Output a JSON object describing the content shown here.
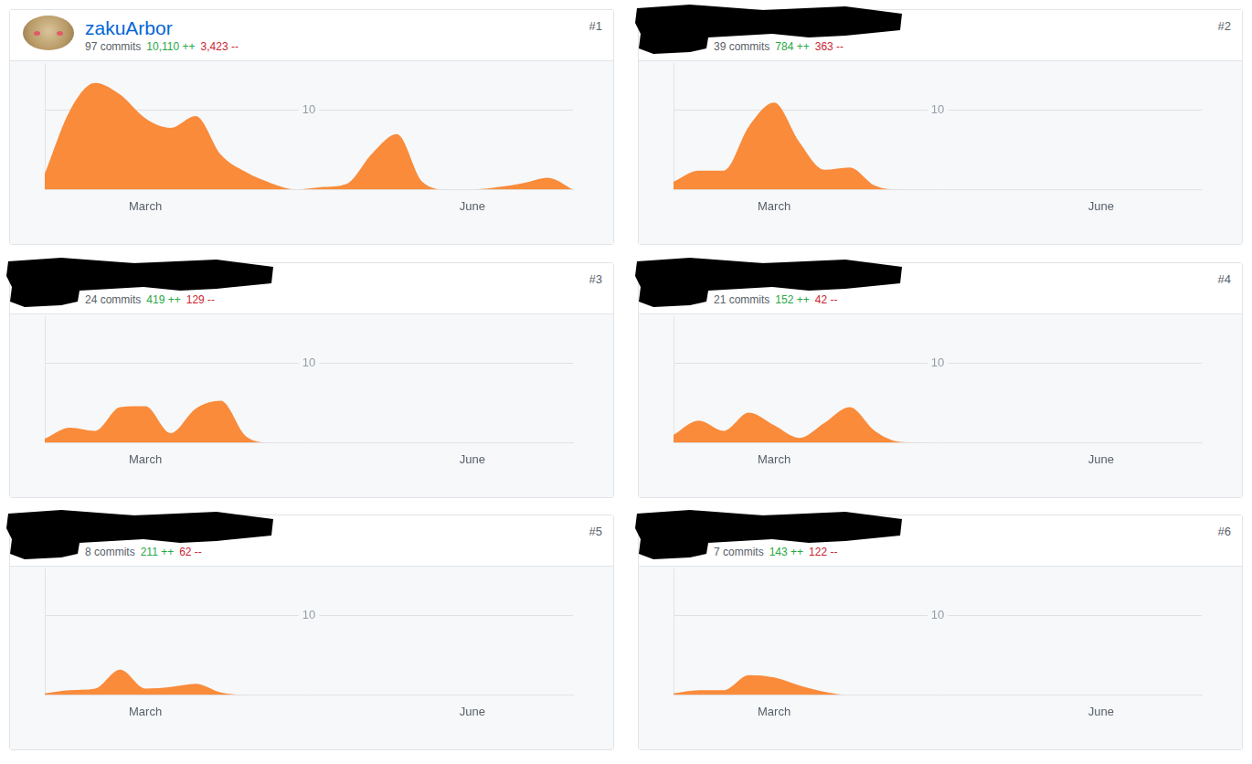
{
  "contributors": [
    {
      "rank": "#1",
      "name": "zakuArbor",
      "commits": "97 commits",
      "additions": "10,110 ++",
      "deletions": "3,423 --"
    },
    {
      "rank": "#2",
      "commits": "39 commits",
      "additions": "784 ++",
      "deletions": "363 --"
    },
    {
      "rank": "#3",
      "commits": "24 commits",
      "additions": "419 ++",
      "deletions": "129 --"
    },
    {
      "rank": "#4",
      "commits": "21 commits",
      "additions": "152 ++",
      "deletions": "42 --"
    },
    {
      "rank": "#5",
      "commits": "8 commits",
      "additions": "211 ++",
      "deletions": "62 --"
    },
    {
      "rank": "#6",
      "commits": "7 commits",
      "additions": "143 ++",
      "deletions": "122 --"
    }
  ],
  "chart_data": [
    {
      "type": "area",
      "color": "#f98b3a",
      "grid": true,
      "ylim": [
        0,
        16
      ],
      "yticks": [
        10
      ],
      "categories": [
        null,
        null,
        null,
        null,
        "March",
        null,
        null,
        null,
        null,
        null,
        null,
        null,
        null,
        null,
        null,
        null,
        null,
        "June",
        null,
        null,
        null,
        null
      ],
      "values": [
        2,
        10,
        13.5,
        12,
        9,
        7.8,
        9.3,
        4.4,
        2.2,
        0.8,
        0,
        0.3,
        0.7,
        4.5,
        7,
        1,
        0,
        0,
        0.3,
        0.8,
        1.5,
        0
      ]
    },
    {
      "type": "area",
      "color": "#f98b3a",
      "grid": true,
      "ylim": [
        0,
        16
      ],
      "yticks": [
        10
      ],
      "categories": [
        null,
        null,
        null,
        null,
        "March",
        null,
        null,
        null,
        null,
        null,
        null,
        null,
        null,
        null,
        null,
        null,
        null,
        "June",
        null,
        null,
        null,
        null
      ],
      "values": [
        1,
        2.4,
        2.4,
        8,
        11,
        6,
        2.5,
        2.8,
        0.5,
        0,
        0,
        0,
        0,
        0,
        0,
        0,
        0,
        0,
        0,
        0,
        0,
        0
      ]
    },
    {
      "type": "area",
      "color": "#f98b3a",
      "grid": true,
      "ylim": [
        0,
        16
      ],
      "yticks": [
        10
      ],
      "categories": [
        null,
        null,
        null,
        null,
        "March",
        null,
        null,
        null,
        null,
        null,
        null,
        null,
        null,
        null,
        null,
        null,
        null,
        "June",
        null,
        null,
        null,
        null
      ],
      "values": [
        0.5,
        1.9,
        1.5,
        4.5,
        4.6,
        1.2,
        4.3,
        5.3,
        0.8,
        0,
        0,
        0,
        0,
        0,
        0,
        0,
        0,
        0,
        0,
        0,
        0,
        0
      ]
    },
    {
      "type": "area",
      "color": "#f98b3a",
      "grid": true,
      "ylim": [
        0,
        16
      ],
      "yticks": [
        10
      ],
      "categories": [
        null,
        null,
        null,
        null,
        "March",
        null,
        null,
        null,
        null,
        null,
        null,
        null,
        null,
        null,
        null,
        null,
        null,
        "June",
        null,
        null,
        null,
        null
      ],
      "values": [
        1,
        2.8,
        1.5,
        3.8,
        2.2,
        0.6,
        2.5,
        4.5,
        1.5,
        0.1,
        0,
        0,
        0,
        0,
        0,
        0,
        0,
        0,
        0,
        0,
        0,
        0
      ]
    },
    {
      "type": "area",
      "color": "#f98b3a",
      "grid": true,
      "ylim": [
        0,
        16
      ],
      "yticks": [
        10
      ],
      "categories": [
        null,
        null,
        null,
        null,
        "March",
        null,
        null,
        null,
        null,
        null,
        null,
        null,
        null,
        null,
        null,
        null,
        null,
        "June",
        null,
        null,
        null,
        null
      ],
      "values": [
        0.2,
        0.6,
        0.8,
        3.2,
        0.8,
        1,
        1.4,
        0.3,
        0,
        0,
        0,
        0,
        0,
        0,
        0,
        0,
        0,
        0,
        0,
        0,
        0,
        0
      ]
    },
    {
      "type": "area",
      "color": "#f98b3a",
      "grid": true,
      "ylim": [
        0,
        16
      ],
      "yticks": [
        10
      ],
      "categories": [
        null,
        null,
        null,
        null,
        "March",
        null,
        null,
        null,
        null,
        null,
        null,
        null,
        null,
        null,
        null,
        null,
        null,
        "June",
        null,
        null,
        null,
        null
      ],
      "values": [
        0.2,
        0.6,
        0.6,
        2.5,
        2.2,
        1.2,
        0.4,
        0,
        0,
        0,
        0,
        0,
        0,
        0,
        0,
        0,
        0,
        0,
        0,
        0,
        0,
        0
      ]
    }
  ]
}
